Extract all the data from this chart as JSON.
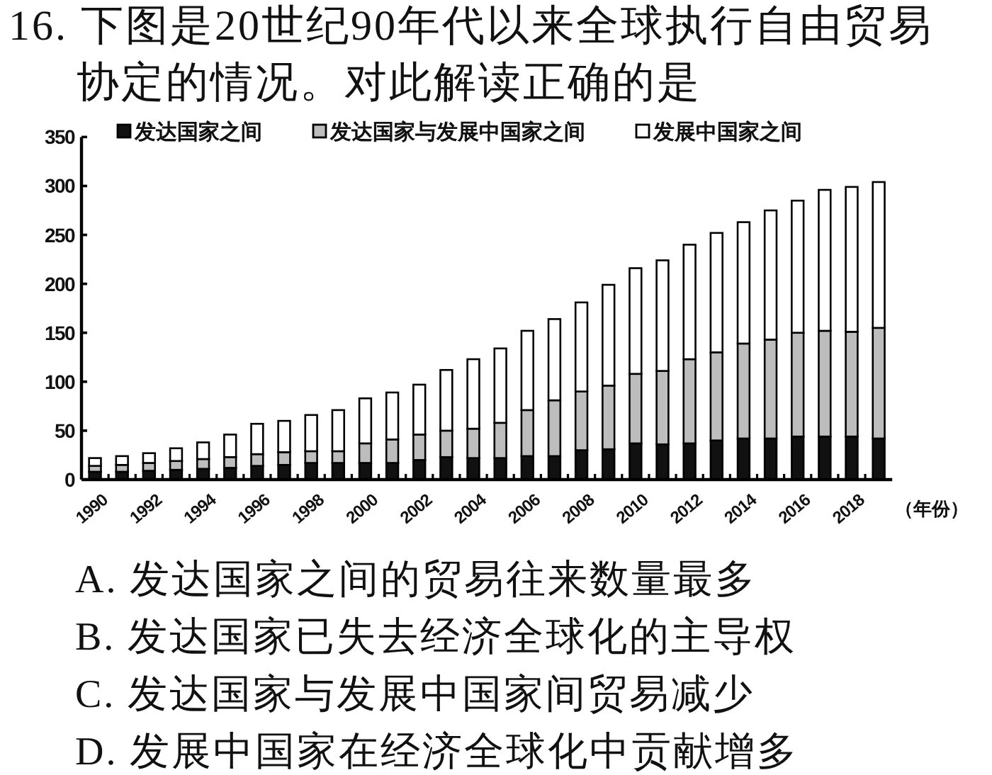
{
  "chart_data": {
    "type": "bar",
    "title": "16. 下图是20世纪90年代以来全球执行自由贸易协定的情况。对此解读正确的是",
    "xlabel": "（年份）",
    "categories": [
      "1990",
      null,
      "1992",
      null,
      "1994",
      null,
      "1996",
      null,
      "1998",
      null,
      "2000",
      null,
      "2002",
      null,
      "2004",
      null,
      "2006",
      null,
      "2008",
      null,
      "2010",
      null,
      "2012",
      null,
      "2014",
      null,
      "2016",
      null,
      "2018",
      null
    ],
    "stacked": true,
    "series": [
      {
        "name": "发达国家之间",
        "color": "#111111",
        "values": [
          8,
          8,
          9,
          10,
          11,
          12,
          14,
          15,
          17,
          17,
          17,
          17,
          20,
          23,
          22,
          22,
          24,
          24,
          30,
          31,
          37,
          36,
          37,
          40,
          42,
          42,
          44,
          44,
          44,
          42
        ]
      },
      {
        "name": "发达国家与发展中国家之间",
        "color": "#bdbdbd",
        "values": [
          6,
          7,
          8,
          9,
          10,
          11,
          12,
          13,
          12,
          12,
          20,
          24,
          26,
          27,
          30,
          36,
          47,
          57,
          60,
          65,
          71,
          75,
          86,
          90,
          97,
          101,
          106,
          108,
          107,
          113
        ]
      },
      {
        "name": "发展中国家之间",
        "color": "#ffffff",
        "values": [
          8,
          9,
          10,
          13,
          17,
          23,
          31,
          32,
          37,
          42,
          46,
          48,
          51,
          62,
          71,
          76,
          81,
          83,
          91,
          103,
          108,
          113,
          117,
          122,
          124,
          132,
          135,
          144,
          148,
          149
        ]
      }
    ],
    "ylim": [
      0,
      350
    ],
    "yticks": [
      0,
      50,
      100,
      150,
      200,
      250,
      300,
      350
    ],
    "legend": "top",
    "annotations": [
      "A. 发达国家之间的贸易往来数量最多",
      "B. 发达国家已失去经济全球化的主导权",
      "C. 发达国家与发展中国家间贸易减少",
      "D. 发展中国家在经济全球化中贡献增多"
    ]
  }
}
